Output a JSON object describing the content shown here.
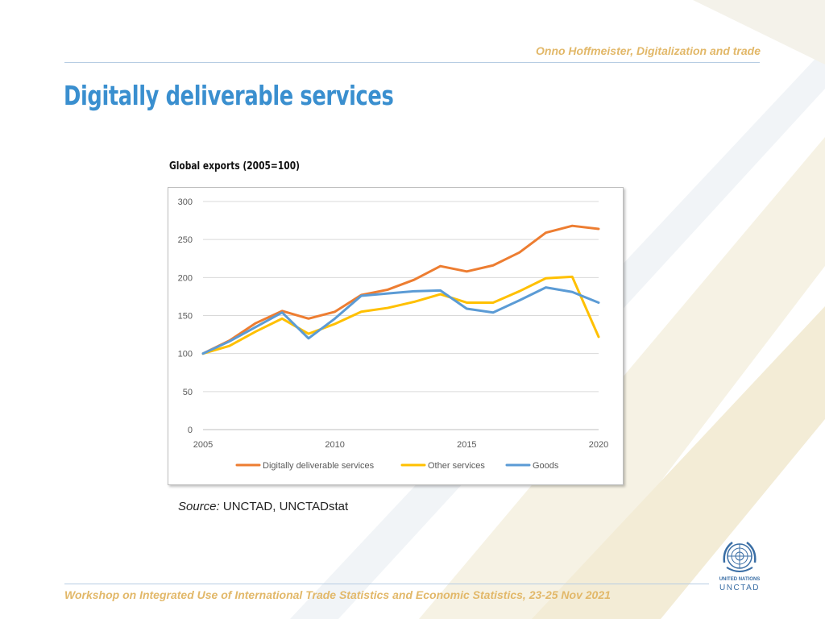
{
  "header": {
    "author": "Onno Hoffmeister, Digitalization and trade"
  },
  "page": {
    "title": "Digitally deliverable services"
  },
  "chart_caption": "Global exports (2005=100)",
  "source": {
    "label": "Source:",
    "text": "UNCTAD, UNCTADstat"
  },
  "footer": {
    "text": "Workshop on Integrated Use of International Trade Statistics and Economic Statistics, 23-25 Nov 2021"
  },
  "logo": {
    "line1": "UNITED NATIONS",
    "line2": "UNCTAD"
  },
  "colors": {
    "title": "#3a8fcf",
    "accent": "#e2b869",
    "digital": "#ed7d31",
    "other": "#ffc000",
    "goods": "#5b9bd5",
    "grid": "#d9d9d9"
  },
  "chart_data": {
    "type": "line",
    "title": "Global exports (2005=100)",
    "xlabel": "",
    "ylabel": "",
    "x": [
      2005,
      2006,
      2007,
      2008,
      2009,
      2010,
      2011,
      2012,
      2013,
      2014,
      2015,
      2016,
      2017,
      2018,
      2019,
      2020
    ],
    "xlim": [
      2005,
      2020
    ],
    "ylim": [
      0,
      300
    ],
    "yticks": [
      0,
      50,
      100,
      150,
      200,
      250,
      300
    ],
    "xticks": [
      2005,
      2010,
      2015,
      2020
    ],
    "grid": true,
    "legend_position": "bottom",
    "series": [
      {
        "name": "Digitally deliverable services",
        "color": "#ed7d31",
        "values": [
          100,
          117,
          140,
          156,
          146,
          155,
          177,
          184,
          197,
          215,
          208,
          216,
          233,
          259,
          268,
          264
        ]
      },
      {
        "name": "Other services",
        "color": "#ffc000",
        "values": [
          100,
          110,
          129,
          146,
          126,
          139,
          155,
          160,
          168,
          178,
          167,
          167,
          182,
          199,
          201,
          122
        ]
      },
      {
        "name": "Goods",
        "color": "#5b9bd5",
        "values": [
          100,
          116,
          135,
          154,
          120,
          146,
          176,
          179,
          182,
          183,
          159,
          154,
          170,
          187,
          181,
          167
        ]
      }
    ]
  }
}
